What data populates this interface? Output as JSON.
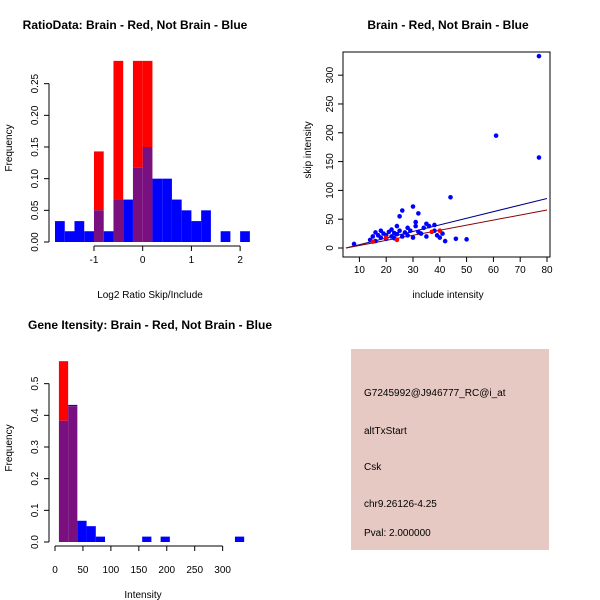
{
  "chart_data": [
    {
      "type": "bar",
      "title": "RatioData: Brain - Red, Not Brain - Blue",
      "xlabel": "Log2 Ratio Skip/Include",
      "ylabel": "Frequency",
      "xlim": [
        -1.8,
        2.1
      ],
      "ylim": [
        0,
        0.3
      ],
      "xticks": [
        "-1",
        "0",
        "1",
        "2"
      ],
      "yticks": [
        "0.00",
        "0.05",
        "0.10",
        "0.15",
        "0.20",
        "0.25"
      ],
      "bin_width": 0.2,
      "series": [
        {
          "name": "Not Brain",
          "color": "#0000ff",
          "bins": [
            [
              -1.8,
              0.033
            ],
            [
              -1.6,
              0.017
            ],
            [
              -1.4,
              0.033
            ],
            [
              -1.2,
              0.017
            ],
            [
              -1.0,
              0.05
            ],
            [
              -0.8,
              0.017
            ],
            [
              -0.6,
              0.067
            ],
            [
              -0.4,
              0.067
            ],
            [
              -0.2,
              0.117
            ],
            [
              0.0,
              0.15
            ],
            [
              0.2,
              0.1
            ],
            [
              0.4,
              0.1
            ],
            [
              0.6,
              0.067
            ],
            [
              0.8,
              0.05
            ],
            [
              1.0,
              0.033
            ],
            [
              1.2,
              0.05
            ],
            [
              1.6,
              0.017
            ],
            [
              2.0,
              0.017
            ]
          ]
        },
        {
          "name": "Brain",
          "color": "#ff0000",
          "bins": [
            [
              -1.0,
              0.143
            ],
            [
              -0.6,
              0.286
            ],
            [
              -0.2,
              0.286
            ],
            [
              0.0,
              0.286
            ]
          ]
        }
      ]
    },
    {
      "type": "scatter",
      "title": "Brain - Red, Not Brain - Blue",
      "xlabel": "include intensity",
      "ylabel": "skip intensity",
      "xlim": [
        5,
        80
      ],
      "ylim": [
        0,
        330
      ],
      "xticks": [
        "10",
        "20",
        "30",
        "40",
        "50",
        "60",
        "70",
        "80"
      ],
      "yticks": [
        "0",
        "50",
        "100",
        "150",
        "200",
        "250",
        "300"
      ],
      "series": [
        {
          "name": "Not Brain",
          "color": "#0000ff",
          "points": [
            [
              8,
              7
            ],
            [
              14,
              14
            ],
            [
              15,
              20
            ],
            [
              16,
              27
            ],
            [
              16,
              12
            ],
            [
              17,
              22
            ],
            [
              18,
              30
            ],
            [
              18,
              18
            ],
            [
              19,
              25
            ],
            [
              20,
              16
            ],
            [
              20,
              22
            ],
            [
              21,
              28
            ],
            [
              22,
              20
            ],
            [
              22,
              32
            ],
            [
              23,
              17
            ],
            [
              23,
              26
            ],
            [
              24,
              38
            ],
            [
              24,
              24
            ],
            [
              25,
              55
            ],
            [
              25,
              30
            ],
            [
              26,
              65
            ],
            [
              26,
              20
            ],
            [
              27,
              27
            ],
            [
              28,
              35
            ],
            [
              28,
              22
            ],
            [
              29,
              30
            ],
            [
              30,
              18
            ],
            [
              30,
              72
            ],
            [
              31,
              38
            ],
            [
              31,
              45
            ],
            [
              32,
              60
            ],
            [
              32,
              28
            ],
            [
              33,
              25
            ],
            [
              34,
              35
            ],
            [
              35,
              20
            ],
            [
              35,
              42
            ],
            [
              36,
              38
            ],
            [
              38,
              30
            ],
            [
              38,
              40
            ],
            [
              39,
              22
            ],
            [
              40,
              18
            ],
            [
              41,
              25
            ],
            [
              42,
              12
            ],
            [
              44,
              88
            ],
            [
              46,
              16
            ],
            [
              50,
              15
            ],
            [
              61,
              195
            ],
            [
              77,
              333
            ],
            [
              77,
              157
            ]
          ]
        },
        {
          "name": "Brain",
          "color": "#ff0000",
          "points": [
            [
              15,
              11
            ],
            [
              20,
              18
            ],
            [
              24,
              14
            ],
            [
              37,
              28
            ],
            [
              40,
              30
            ]
          ]
        }
      ],
      "fit_lines": [
        {
          "name": "Not Brain fit",
          "color": "#00008b",
          "from": [
            5,
            0
          ],
          "to": [
            80,
            86
          ]
        },
        {
          "name": "Brain fit",
          "color": "#8b0000",
          "from": [
            5,
            0
          ],
          "to": [
            80,
            66
          ]
        }
      ]
    },
    {
      "type": "bar",
      "title": "Gene Itensity: Brain - Red, Not Brain - Blue",
      "xlabel": "Intensity",
      "ylabel": "Frequency",
      "xlim": [
        0,
        340
      ],
      "ylim": [
        0,
        0.6
      ],
      "xticks": [
        "0",
        "50",
        "100",
        "150",
        "200",
        "250",
        "300"
      ],
      "yticks": [
        "0.0",
        "0.1",
        "0.2",
        "0.3",
        "0.4",
        "0.5"
      ],
      "bin_width": 16.5,
      "series": [
        {
          "name": "Not Brain",
          "color": "#0000ff",
          "bins": [
            [
              7,
              0.383
            ],
            [
              23.5,
              0.433
            ],
            [
              40,
              0.067
            ],
            [
              56.5,
              0.05
            ],
            [
              73,
              0.017
            ],
            [
              156,
              0.017
            ],
            [
              189,
              0.017
            ],
            [
              322,
              0.017
            ]
          ]
        },
        {
          "name": "Brain",
          "color": "#ff0000",
          "bins": [
            [
              7,
              0.571
            ],
            [
              23.5,
              0.429
            ]
          ]
        }
      ]
    }
  ],
  "info_panel": {
    "probe_id": "G7245992@J946777_RC@i_at",
    "event_type": "altTxStart",
    "gene": "Csk",
    "location": "chr9.26126-4.25",
    "pval": "Pval: 2.000000",
    "bg_color": "#e6c9c2",
    "pval_color": "#b00000"
  },
  "colors": {
    "blue": "#0000ff",
    "red": "#ff0000",
    "overlap": "#7a0f7f"
  }
}
